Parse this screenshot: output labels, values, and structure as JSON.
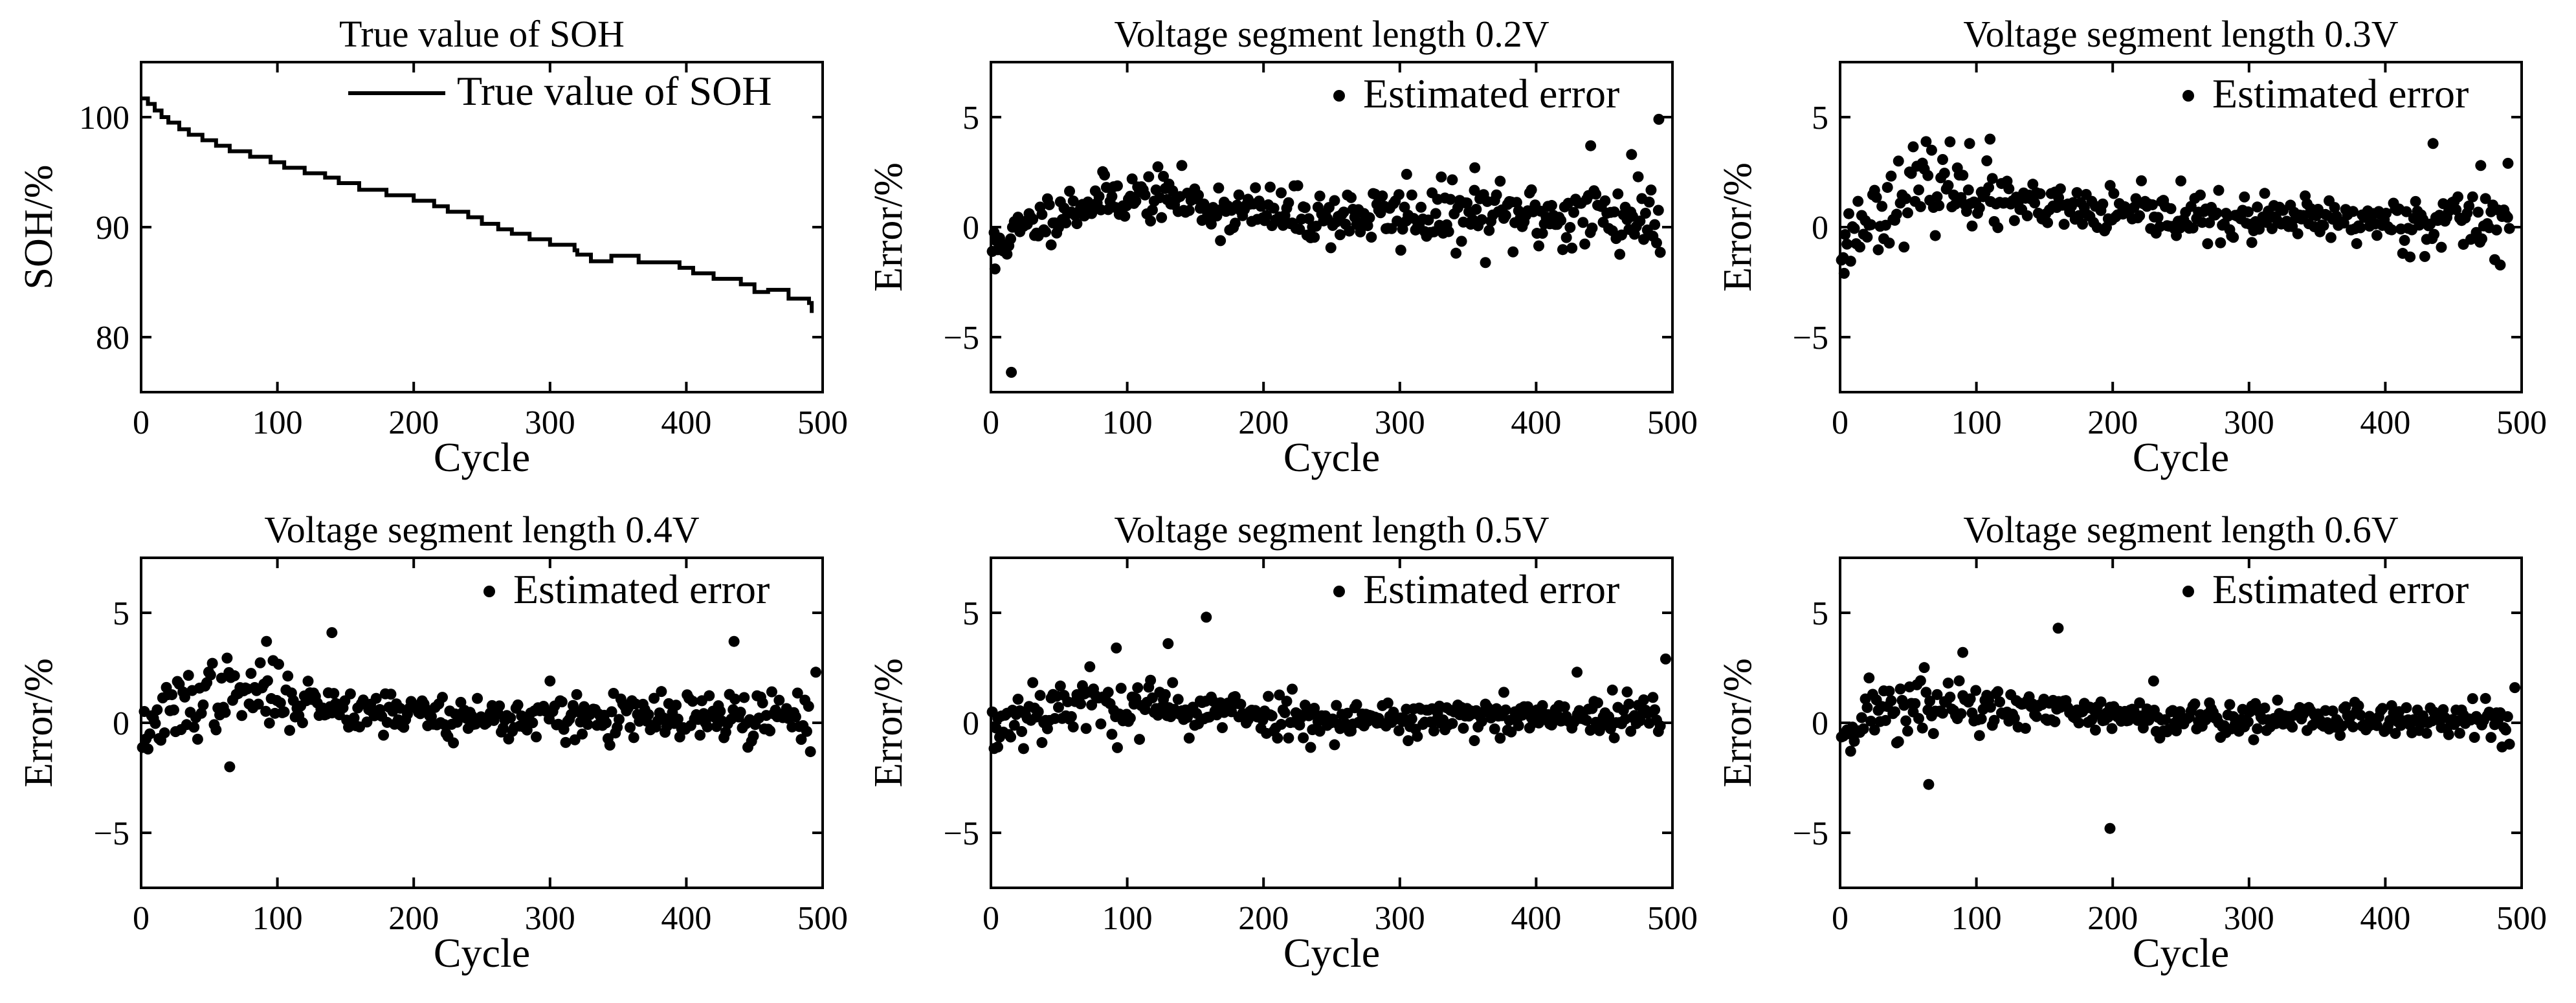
{
  "chart_data": [
    {
      "id": "soh",
      "type": "line",
      "title": "True value of SOH",
      "xlabel": "Cycle",
      "ylabel": "SOH/%",
      "xlim": [
        0,
        500
      ],
      "ylim": [
        75,
        105
      ],
      "xticks": [
        "0",
        "100",
        "200",
        "300",
        "400",
        "500"
      ],
      "yticks": [
        "80",
        "90",
        "100"
      ],
      "legend": "True value of SOH",
      "legend_position": "top-right",
      "step": true,
      "series": [
        {
          "name": "True value of SOH",
          "x": [
            0,
            5,
            10,
            15,
            20,
            28,
            35,
            45,
            55,
            65,
            80,
            95,
            105,
            120,
            135,
            145,
            160,
            180,
            200,
            215,
            225,
            240,
            250,
            262,
            272,
            285,
            300,
            318,
            320,
            330,
            345,
            365,
            380,
            395,
            405,
            420,
            440,
            450,
            460,
            475,
            490,
            492
          ],
          "y": [
            101.7,
            101.2,
            100.6,
            100.0,
            99.5,
            98.9,
            98.4,
            97.9,
            97.4,
            96.9,
            96.4,
            95.9,
            95.4,
            94.9,
            94.5,
            94.0,
            93.4,
            92.9,
            92.4,
            91.9,
            91.4,
            90.9,
            90.3,
            89.8,
            89.4,
            88.9,
            88.4,
            87.9,
            87.5,
            86.9,
            87.4,
            86.8,
            86.8,
            86.3,
            85.8,
            85.3,
            84.8,
            84.1,
            84.3,
            83.5,
            83.1,
            82.2
          ]
        }
      ]
    },
    {
      "id": "v02",
      "type": "scatter",
      "title": "Voltage segment length 0.2V",
      "xlabel": "Cycle",
      "ylabel": "Error/%",
      "xlim": [
        0,
        500
      ],
      "ylim": [
        -7.5,
        7.5
      ],
      "xticks": [
        "0",
        "100",
        "200",
        "300",
        "400",
        "500"
      ],
      "yticks": [
        "-5",
        "0",
        "5"
      ],
      "legend": "Estimated error",
      "legend_position": "top-right",
      "seed": 11,
      "early_trend": [
        [
          0,
          -1.0
        ],
        [
          20,
          -0.2
        ],
        [
          50,
          0.7
        ],
        [
          90,
          1.4
        ],
        [
          130,
          1.4
        ],
        [
          170,
          0.8
        ],
        [
          230,
          0.5
        ],
        [
          500,
          0.5
        ]
      ],
      "noise_sd": [
        [
          0,
          0.6
        ],
        [
          200,
          0.7
        ],
        [
          380,
          0.9
        ],
        [
          500,
          1.2
        ]
      ],
      "outliers": [
        [
          3,
          -1.9
        ],
        [
          15,
          -6.6
        ],
        [
          490,
          4.9
        ],
        [
          440,
          3.7
        ],
        [
          470,
          3.3
        ],
        [
          305,
          2.4
        ],
        [
          355,
          2.7
        ]
      ]
    },
    {
      "id": "v03",
      "type": "scatter",
      "title": "Voltage segment length 0.3V",
      "xlabel": "Cycle",
      "ylabel": "Error/%",
      "xlim": [
        0,
        500
      ],
      "ylim": [
        -7.5,
        7.5
      ],
      "xticks": [
        "0",
        "100",
        "200",
        "300",
        "400",
        "500"
      ],
      "yticks": [
        "-5",
        "0",
        "5"
      ],
      "legend": "Estimated error",
      "legend_position": "top-right",
      "seed": 23,
      "early_trend": [
        [
          0,
          -0.8
        ],
        [
          20,
          0.4
        ],
        [
          50,
          1.6
        ],
        [
          80,
          2.0
        ],
        [
          120,
          1.0
        ],
        [
          200,
          0.6
        ],
        [
          300,
          0.3
        ],
        [
          500,
          0.3
        ]
      ],
      "noise_sd": [
        [
          0,
          0.8
        ],
        [
          60,
          1.1
        ],
        [
          140,
          0.6
        ],
        [
          380,
          0.6
        ],
        [
          500,
          1.0
        ]
      ],
      "outliers": [
        [
          3,
          -2.1
        ],
        [
          110,
          4.0
        ],
        [
          95,
          3.8
        ],
        [
          435,
          3.8
        ],
        [
          470,
          2.8
        ],
        [
          490,
          2.9
        ],
        [
          250,
          2.1
        ]
      ]
    },
    {
      "id": "v04",
      "type": "scatter",
      "title": "Voltage segment length 0.4V",
      "xlabel": "Cycle",
      "ylabel": "Error/%",
      "xlim": [
        0,
        500
      ],
      "ylim": [
        -7.5,
        7.5
      ],
      "xticks": [
        "0",
        "100",
        "200",
        "300",
        "400",
        "500"
      ],
      "yticks": [
        "-5",
        "0",
        "5"
      ],
      "legend": "Estimated error",
      "legend_position": "top-right",
      "seed": 37,
      "early_trend": [
        [
          0,
          -0.6
        ],
        [
          20,
          0.4
        ],
        [
          50,
          1.3
        ],
        [
          90,
          1.3
        ],
        [
          150,
          0.7
        ],
        [
          250,
          0.2
        ],
        [
          500,
          0.2
        ]
      ],
      "noise_sd": [
        [
          0,
          0.6
        ],
        [
          40,
          1.0
        ],
        [
          140,
          0.6
        ],
        [
          400,
          0.6
        ],
        [
          500,
          0.9
        ]
      ],
      "outliers": [
        [
          140,
          4.1
        ],
        [
          92,
          3.7
        ],
        [
          435,
          3.7
        ],
        [
          495,
          2.3
        ],
        [
          65,
          -2.0
        ],
        [
          300,
          1.9
        ]
      ]
    },
    {
      "id": "v05",
      "type": "scatter",
      "title": "Voltage segment length 0.5V",
      "xlabel": "Cycle",
      "ylabel": "Error/%",
      "xlim": [
        0,
        500
      ],
      "ylim": [
        -7.5,
        7.5
      ],
      "xticks": [
        "0",
        "100",
        "200",
        "300",
        "400",
        "500"
      ],
      "yticks": [
        "-5",
        "0",
        "5"
      ],
      "legend": "Estimated error",
      "legend_position": "top-right",
      "seed": 53,
      "early_trend": [
        [
          0,
          -0.4
        ],
        [
          20,
          0.5
        ],
        [
          60,
          0.9
        ],
        [
          140,
          0.6
        ],
        [
          250,
          0.2
        ],
        [
          500,
          0.2
        ]
      ],
      "noise_sd": [
        [
          0,
          0.7
        ],
        [
          50,
          1.0
        ],
        [
          160,
          0.6
        ],
        [
          400,
          0.5
        ],
        [
          500,
          0.7
        ]
      ],
      "outliers": [
        [
          158,
          4.8
        ],
        [
          130,
          3.6
        ],
        [
          92,
          3.4
        ],
        [
          495,
          2.9
        ],
        [
          5,
          -1.1
        ],
        [
          430,
          2.3
        ]
      ]
    },
    {
      "id": "v06",
      "type": "scatter",
      "title": "Voltage segment length 0.6V",
      "xlabel": "Cycle",
      "ylabel": "Error/%",
      "xlim": [
        0,
        500
      ],
      "ylim": [
        -7.5,
        7.5
      ],
      "xticks": [
        "0",
        "100",
        "200",
        "300",
        "400",
        "500"
      ],
      "yticks": [
        "-5",
        "0",
        "5"
      ],
      "legend": "Estimated error",
      "legend_position": "top-right",
      "seed": 71,
      "early_trend": [
        [
          0,
          -0.5
        ],
        [
          20,
          0.5
        ],
        [
          60,
          0.8
        ],
        [
          140,
          0.5
        ],
        [
          250,
          0.2
        ],
        [
          500,
          0.1
        ]
      ],
      "noise_sd": [
        [
          0,
          0.7
        ],
        [
          50,
          0.9
        ],
        [
          160,
          0.5
        ],
        [
          400,
          0.5
        ],
        [
          500,
          0.6
        ]
      ],
      "outliers": [
        [
          160,
          4.3
        ],
        [
          198,
          -4.8
        ],
        [
          65,
          -2.8
        ],
        [
          90,
          3.2
        ],
        [
          495,
          1.6
        ],
        [
          230,
          1.9
        ]
      ]
    }
  ]
}
